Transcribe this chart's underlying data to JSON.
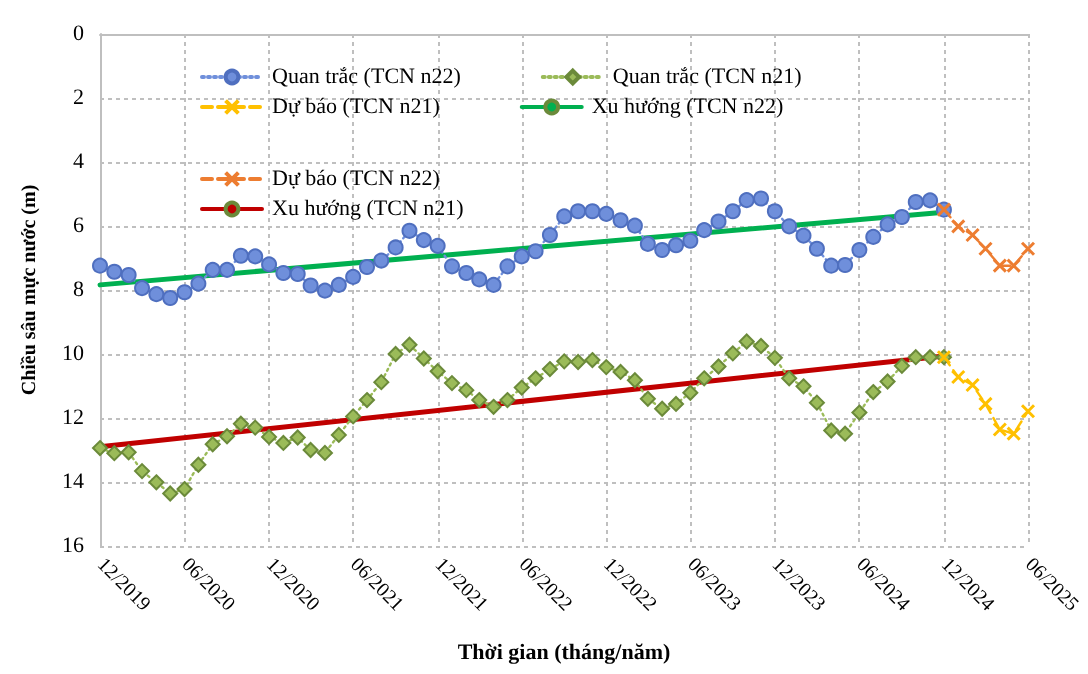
{
  "chart_data": {
    "type": "line",
    "xlabel": "Thời gian (tháng/năm)",
    "ylabel": "Chiều sâu mực nước (m)",
    "xlim": [
      "2019-12",
      "2025-06"
    ],
    "xticks": [
      {
        "value": "2019-12",
        "label": "12/2019"
      },
      {
        "value": "2020-06",
        "label": "06/2020"
      },
      {
        "value": "2020-12",
        "label": "12/2020"
      },
      {
        "value": "2021-06",
        "label": "06/2021"
      },
      {
        "value": "2021-12",
        "label": "12/2021"
      },
      {
        "value": "2022-06",
        "label": "06/2022"
      },
      {
        "value": "2022-12",
        "label": "12/2022"
      },
      {
        "value": "2023-06",
        "label": "06/2023"
      },
      {
        "value": "2023-12",
        "label": "12/2023"
      },
      {
        "value": "2024-06",
        "label": "06/2024"
      },
      {
        "value": "2024-12",
        "label": "12/2024"
      },
      {
        "value": "2025-06",
        "label": "06/2025"
      }
    ],
    "ylim": [
      16,
      0
    ],
    "yticks": [
      0,
      2,
      4,
      6,
      8,
      10,
      12,
      14,
      16
    ],
    "grid": true,
    "legend": "top",
    "series": [
      {
        "name": "Quan trắc (TCN n22)",
        "color": "#6f8fdb",
        "marker": "circle",
        "line_style": "dotted",
        "x": [
          "2019-12",
          "2020-01",
          "2020-02",
          "2020-03",
          "2020-04",
          "2020-05",
          "2020-06",
          "2020-07",
          "2020-08",
          "2020-09",
          "2020-10",
          "2020-11",
          "2020-12",
          "2021-01",
          "2021-02",
          "2021-03",
          "2021-04",
          "2021-05",
          "2021-06",
          "2021-07",
          "2021-08",
          "2021-09",
          "2021-10",
          "2021-11",
          "2021-12",
          "2022-01",
          "2022-02",
          "2022-03",
          "2022-04",
          "2022-05",
          "2022-06",
          "2022-07",
          "2022-08",
          "2022-09",
          "2022-10",
          "2022-11",
          "2022-12",
          "2023-01",
          "2023-02",
          "2023-03",
          "2023-04",
          "2023-05",
          "2023-06",
          "2023-07",
          "2023-08",
          "2023-09",
          "2023-10",
          "2023-11",
          "2023-12",
          "2024-01",
          "2024-02",
          "2024-03",
          "2024-04",
          "2024-05",
          "2024-06",
          "2024-07",
          "2024-08",
          "2024-09",
          "2024-10",
          "2024-11",
          "2024-12"
        ],
        "values": [
          7.24,
          7.43,
          7.53,
          7.94,
          8.13,
          8.25,
          8.07,
          7.8,
          7.37,
          7.37,
          6.93,
          6.95,
          7.2,
          7.47,
          7.5,
          7.86,
          8.02,
          7.84,
          7.59,
          7.28,
          7.08,
          6.67,
          6.15,
          6.44,
          6.62,
          7.26,
          7.47,
          7.67,
          7.84,
          7.26,
          6.95,
          6.79,
          6.28,
          5.7,
          5.54,
          5.54,
          5.62,
          5.82,
          5.99,
          6.56,
          6.75,
          6.6,
          6.46,
          6.13,
          5.86,
          5.54,
          5.19,
          5.14,
          5.54,
          6.01,
          6.3,
          6.71,
          7.24,
          7.22,
          6.75,
          6.34,
          5.95,
          5.72,
          5.25,
          5.2,
          5.49
        ]
      },
      {
        "name": "Quan trắc (TCN n21)",
        "color": "#9bbb59",
        "marker": "diamond",
        "line_style": "dotted",
        "x": [
          "2019-12",
          "2020-01",
          "2020-02",
          "2020-03",
          "2020-04",
          "2020-05",
          "2020-06",
          "2020-07",
          "2020-08",
          "2020-09",
          "2020-10",
          "2020-11",
          "2020-12",
          "2021-01",
          "2021-02",
          "2021-03",
          "2021-04",
          "2021-05",
          "2021-06",
          "2021-07",
          "2021-08",
          "2021-09",
          "2021-10",
          "2021-11",
          "2021-12",
          "2022-01",
          "2022-02",
          "2022-03",
          "2022-04",
          "2022-05",
          "2022-06",
          "2022-07",
          "2022-08",
          "2022-09",
          "2022-10",
          "2022-11",
          "2022-12",
          "2023-01",
          "2023-02",
          "2023-03",
          "2023-04",
          "2023-05",
          "2023-06",
          "2023-07",
          "2023-08",
          "2023-09",
          "2023-10",
          "2023-11",
          "2023-12",
          "2024-01",
          "2024-02",
          "2024-03",
          "2024-04",
          "2024-05",
          "2024-06",
          "2024-07",
          "2024-08",
          "2024-09",
          "2024-10",
          "2024-11",
          "2024-12"
        ],
        "values": [
          12.94,
          13.1,
          13.07,
          13.66,
          14.01,
          14.36,
          14.22,
          13.46,
          12.82,
          12.57,
          12.18,
          12.3,
          12.59,
          12.78,
          12.61,
          13.0,
          13.09,
          12.53,
          11.95,
          11.44,
          10.88,
          10.0,
          9.71,
          10.14,
          10.54,
          10.91,
          11.13,
          11.44,
          11.65,
          11.44,
          11.05,
          10.76,
          10.47,
          10.23,
          10.25,
          10.19,
          10.41,
          10.56,
          10.82,
          11.4,
          11.71,
          11.56,
          11.21,
          10.76,
          10.39,
          9.98,
          9.61,
          9.75,
          10.12,
          10.76,
          11.01,
          11.52,
          12.39,
          12.49,
          11.83,
          11.19,
          10.86,
          10.37,
          10.1,
          10.1,
          10.1
        ]
      },
      {
        "name": "Dự báo (TCN n22)",
        "color": "#ed7d31",
        "marker": "cross",
        "line_style": "dashed",
        "x": [
          "2024-12",
          "2025-01",
          "2025-02",
          "2025-03",
          "2025-04",
          "2025-05",
          "2025-06"
        ],
        "values": [
          5.49,
          6.01,
          6.28,
          6.71,
          7.24,
          7.24,
          6.71
        ]
      },
      {
        "name": "Dự báo (TCN n21)",
        "color": "#ffc000",
        "marker": "cross",
        "line_style": "dashed",
        "x": [
          "2024-12",
          "2025-01",
          "2025-02",
          "2025-03",
          "2025-04",
          "2025-05",
          "2025-06"
        ],
        "values": [
          10.1,
          10.72,
          10.97,
          11.56,
          12.36,
          12.49,
          11.79
        ]
      },
      {
        "name": "Xu hướng (TCN n22)",
        "color": "#00b050",
        "marker": "none",
        "line_style": "solid",
        "x": [
          "2019-12",
          "2024-12"
        ],
        "values": [
          7.84,
          5.57
        ]
      },
      {
        "name": "Xu hướng (TCN n21)",
        "color": "#c00000",
        "marker": "none",
        "line_style": "solid",
        "x": [
          "2019-12",
          "2024-12"
        ],
        "values": [
          12.9,
          10.06
        ]
      }
    ]
  }
}
